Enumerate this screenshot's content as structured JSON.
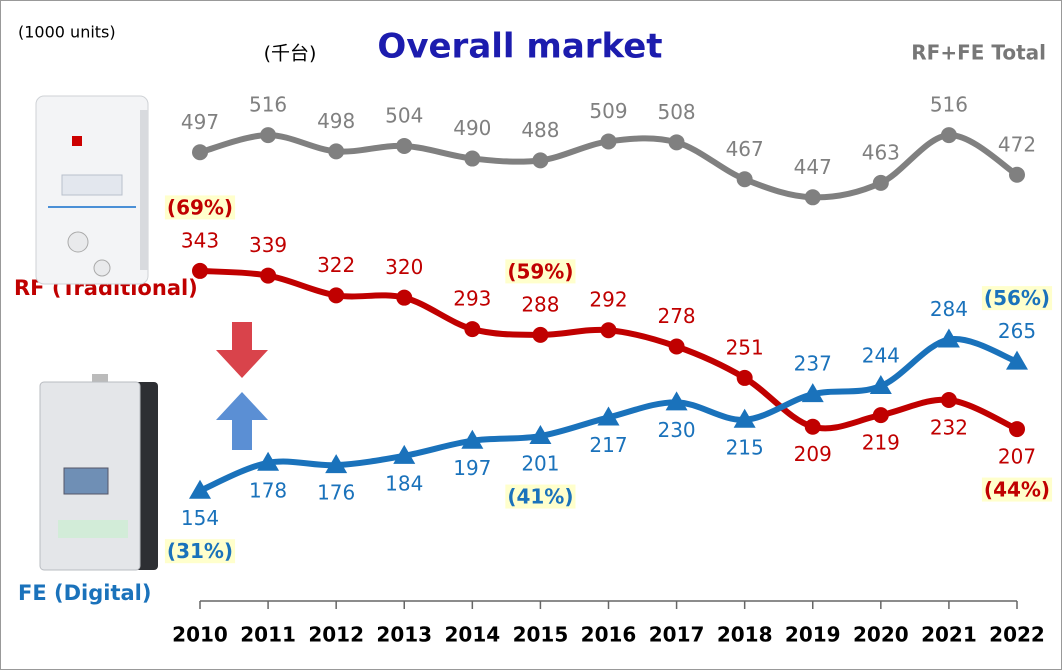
{
  "chart_data": {
    "type": "line",
    "title": "Overall market",
    "subtitle": "(千台)",
    "unit_note": "(1000 units)",
    "categories": [
      "2010",
      "2011",
      "2012",
      "2013",
      "2014",
      "2015",
      "2016",
      "2017",
      "2018",
      "2019",
      "2020",
      "2021",
      "2022"
    ],
    "ylim": [
      60,
      490
    ],
    "y2lim": [
      0,
      555
    ],
    "series": [
      {
        "name": "RF+FE Total",
        "color": "#808080",
        "marker": "circle",
        "axis": "y2",
        "values": [
          497,
          516,
          498,
          504,
          490,
          488,
          509,
          508,
          467,
          447,
          463,
          516,
          472
        ]
      },
      {
        "name": "RF (Traditional)",
        "color": "#c00000",
        "marker": "circle",
        "values": [
          343,
          339,
          322,
          320,
          293,
          288,
          292,
          278,
          251,
          209,
          219,
          232,
          207
        ],
        "share_labels": [
          "(69%)",
          null,
          null,
          null,
          null,
          "(59%)",
          null,
          null,
          null,
          null,
          null,
          null,
          "(44%)"
        ]
      },
      {
        "name": "FE (Digital)",
        "color": "#1a72bb",
        "marker": "triangle",
        "values": [
          154,
          178,
          176,
          184,
          197,
          201,
          217,
          230,
          215,
          237,
          244,
          284,
          265
        ],
        "share_labels": [
          "(31%)",
          null,
          null,
          null,
          null,
          "(41%)",
          null,
          null,
          null,
          null,
          null,
          null,
          "(56%)"
        ]
      }
    ]
  }
}
